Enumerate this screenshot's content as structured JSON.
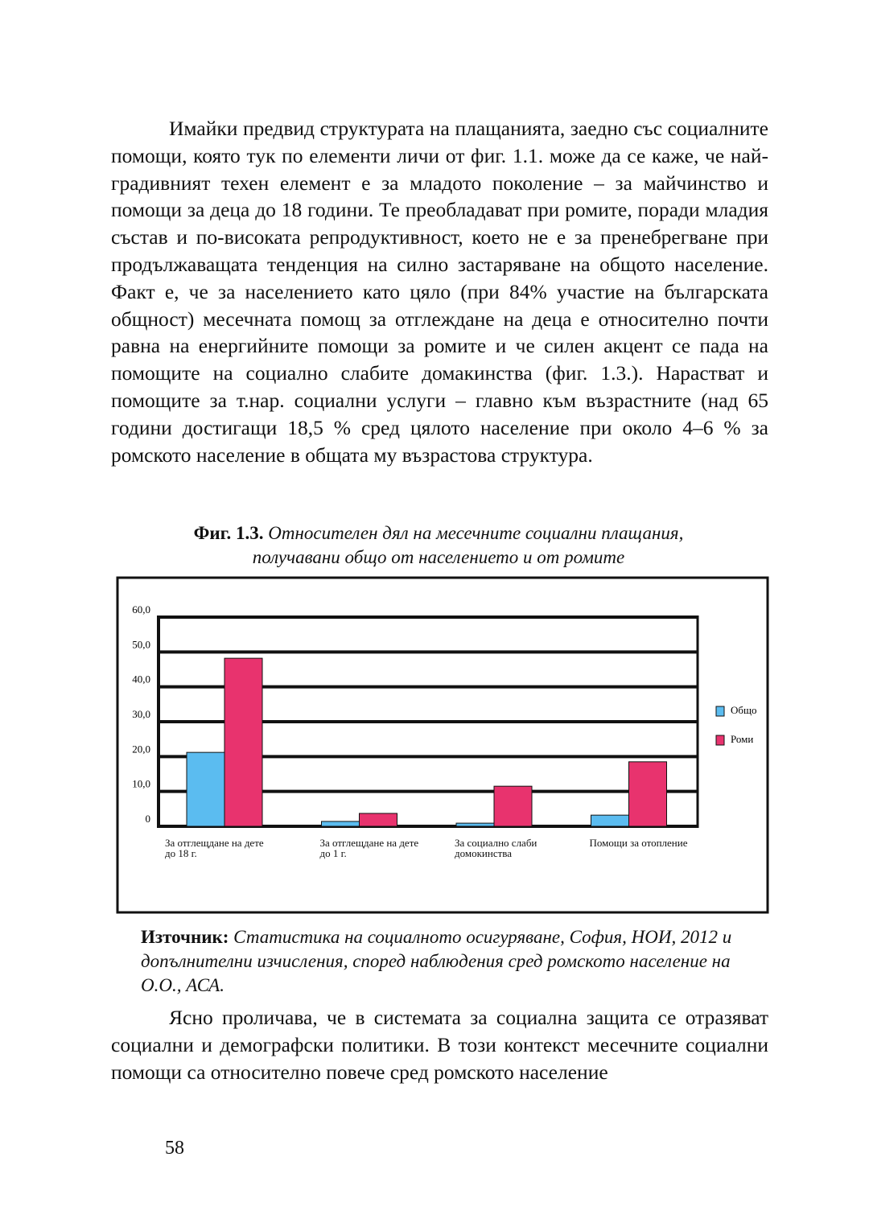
{
  "paragraphs": [
    "Имайки предвид структурата на плащанията, заедно със социалните помощи, която тук по елементи личи от фиг. 1.1. може да се каже, че най-градивният техен елемент е за младото поколение – за майчинство и помощи за деца до 18 години. Те преобладават при ромите, поради младия състав и по-високата репродуктивност, което не е за пренебрегване при продължаващата тенденция на силно застаряване на общото население. Факт е, че за населението като цяло (при 84% участие на българската общност) месечната помощ за отглеждане на деца е относително почти равна на енергийните помощи за ромите и че силен акцент се пада на помощите на социално слабите домакинства (фиг. 1.3.). Нарастват и помощите за т.нар. социални услуги – главно към възрастните (над 65 години достигащи 18,5 % сред цялото население при около 4–6 % за ромското население в общата му възрастова структура.",
    "Ясно проличава, че в системата за социална защита се отразяват социални и демографски политики. В този контекст месечните социални помощи са относително повече сред ромското население"
  ],
  "figure": {
    "label": "Фиг. 1.3.",
    "caption": "Относителен дял на месечните социални плащания, получавани общо от населението и от ромите"
  },
  "chart_data": {
    "type": "bar",
    "categories": [
      "За отглещдане на дете до 18 г.",
      "За отглещдане на дете до 1 г.",
      "За социално слаби домокинства",
      "Помощи за отопление"
    ],
    "series": [
      {
        "name": "Общо",
        "color": "#5bbcf0",
        "values": [
          21.2,
          1.4,
          0.9,
          3.2
        ]
      },
      {
        "name": "Роми",
        "color": "#e8336e",
        "values": [
          48.2,
          3.7,
          11.5,
          18.5
        ]
      }
    ],
    "ylim": [
      0,
      60
    ],
    "yticks": [
      0,
      {
        "value": 10,
        "label": "10,0"
      },
      {
        "value": 20,
        "label": "20,0"
      },
      {
        "value": 30,
        "label": "30,0"
      },
      {
        "value": 40,
        "label": "40,0"
      },
      {
        "value": 50,
        "label": "50,0"
      },
      {
        "value": 60,
        "label": "60,0"
      }
    ],
    "grid": true,
    "legend": "right"
  },
  "source": {
    "label": "Източник:",
    "text": "Статистика на социалното осигуряване, София, НОИ, 2012 и допълнителни изчисления, според наблюдения сред ромското население на О.О., АСА."
  },
  "page_number": "58"
}
